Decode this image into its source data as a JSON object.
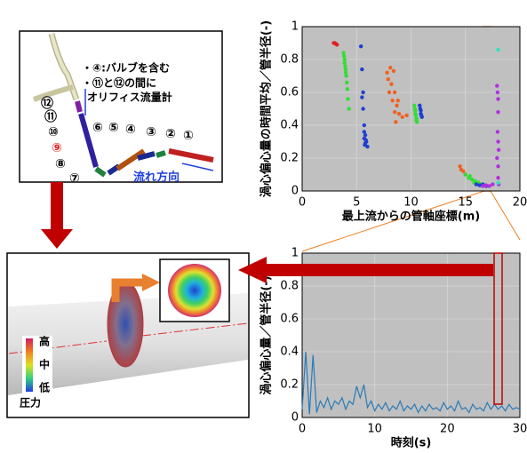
{
  "chart_data": [
    {
      "type": "scatter",
      "ylabel": "渦心偏心量の時間平均／管半径(-)",
      "xlabel": "最上流からの管軸座標(m)",
      "xlim": [
        0,
        20
      ],
      "xticks": [
        0,
        5,
        10,
        15,
        20
      ],
      "ylim": [
        0,
        1
      ],
      "yticks": [
        0,
        0.2,
        0.4,
        0.6,
        0.8,
        1
      ],
      "grid": true,
      "series": [
        {
          "color": "#e02020",
          "x": [
            2.9,
            3.0,
            3.1,
            3.2
          ],
          "values": [
            0.9,
            0.9,
            0.895,
            0.89
          ]
        },
        {
          "color": "#33dd33",
          "x": [
            3.8,
            3.85,
            3.9,
            3.9,
            3.95,
            4.0,
            4.0,
            4.05,
            4.1,
            4.15,
            4.2,
            4.3
          ],
          "values": [
            0.84,
            0.82,
            0.8,
            0.78,
            0.76,
            0.74,
            0.72,
            0.7,
            0.66,
            0.62,
            0.56,
            0.5
          ]
        },
        {
          "color": "#1f3fd0",
          "x": [
            5.4,
            5.5,
            5.6,
            5.6,
            5.5,
            5.7,
            5.7,
            5.8,
            5.7,
            5.9,
            5.8,
            6.0,
            5.75,
            5.85
          ],
          "values": [
            0.88,
            0.74,
            0.6,
            0.5,
            0.57,
            0.4,
            0.36,
            0.34,
            0.32,
            0.3,
            0.29,
            0.27,
            0.28,
            0.31
          ]
        },
        {
          "color": "#f06020",
          "x": [
            7.8,
            8.1,
            8.4,
            7.9,
            8.2,
            8.5,
            8.0,
            8.3,
            8.7,
            8.5,
            8.9,
            9.2,
            9.6,
            8.8,
            8.6
          ],
          "values": [
            0.72,
            0.75,
            0.73,
            0.68,
            0.65,
            0.6,
            0.6,
            0.55,
            0.52,
            0.48,
            0.47,
            0.45,
            0.46,
            0.55,
            0.42
          ]
        },
        {
          "color": "#33dd33",
          "x": [
            10.3,
            10.35,
            10.4,
            10.4,
            10.45,
            10.5,
            10.5,
            10.55
          ],
          "values": [
            0.52,
            0.5,
            0.49,
            0.47,
            0.46,
            0.44,
            0.43,
            0.42
          ]
        },
        {
          "color": "#1f3fd0",
          "x": [
            10.8,
            10.85,
            10.9,
            10.9,
            10.95,
            11.0
          ],
          "values": [
            0.52,
            0.5,
            0.49,
            0.47,
            0.46,
            0.45
          ]
        },
        {
          "color": "#f06020",
          "x": [
            14.5,
            14.6,
            14.8,
            15.0
          ],
          "values": [
            0.15,
            0.13,
            0.12,
            0.1
          ]
        },
        {
          "color": "#33dd33",
          "x": [
            15.0,
            15.3,
            15.6,
            15.9,
            16.2,
            16.5,
            15.4,
            15.8
          ],
          "values": [
            0.1,
            0.08,
            0.07,
            0.06,
            0.05,
            0.04,
            0.09,
            0.05
          ]
        },
        {
          "color": "#1f3fd0",
          "x": [
            16.0,
            16.3,
            16.6,
            16.9
          ],
          "values": [
            0.04,
            0.035,
            0.04,
            0.03
          ]
        },
        {
          "color": "#b030e0",
          "x": [
            16.6,
            16.9,
            17.2,
            17.5,
            17.9,
            17.95,
            18.0,
            18.0,
            17.95,
            18.0,
            18.05,
            17.9,
            18.0,
            18.0,
            18.05
          ],
          "values": [
            0.03,
            0.035,
            0.03,
            0.04,
            0.64,
            0.6,
            0.56,
            0.48,
            0.36,
            0.3,
            0.25,
            0.2,
            0.15,
            0.08,
            0.04
          ]
        },
        {
          "color": "#30e0c0",
          "x": [
            18.0,
            18.0
          ],
          "values": [
            0.86,
            0.05
          ]
        }
      ]
    },
    {
      "type": "line",
      "ylabel": "渦心偏心量／管半径(-)",
      "xlabel": "時刻(s)",
      "xlim": [
        0,
        30
      ],
      "xticks": [
        0,
        10,
        20,
        30
      ],
      "ylim": [
        0,
        1
      ],
      "yticks": [
        0,
        0.2,
        0.4,
        0.6,
        0.8,
        1
      ],
      "grid": true,
      "color": "#2a7ab8",
      "x": [
        0,
        0.5,
        1,
        1.5,
        2,
        2.5,
        3,
        3.5,
        4,
        4.5,
        5,
        5.5,
        6,
        6.5,
        7,
        7.5,
        8,
        8.5,
        9,
        9.5,
        10,
        10.5,
        11,
        11.5,
        12,
        12.5,
        13,
        13.5,
        14,
        14.5,
        15,
        15.5,
        16,
        16.5,
        17,
        17.5,
        18,
        18.5,
        19,
        19.5,
        20,
        20.5,
        21,
        21.5,
        22,
        22.5,
        23,
        23.5,
        24,
        24.5,
        25,
        25.5,
        26,
        26.5,
        27,
        27.5,
        28,
        28.5,
        29,
        29.5,
        30
      ],
      "values": [
        0.05,
        0.4,
        0.02,
        0.38,
        0.03,
        0.1,
        0.06,
        0.12,
        0.05,
        0.1,
        0.08,
        0.12,
        0.05,
        0.1,
        0.08,
        0.19,
        0.12,
        0.2,
        0.06,
        0.1,
        0.04,
        0.08,
        0.05,
        0.09,
        0.04,
        0.07,
        0.05,
        0.1,
        0.04,
        0.07,
        0.05,
        0.08,
        0.03,
        0.07,
        0.04,
        0.08,
        0.05,
        0.06,
        0.04,
        0.09,
        0.05,
        0.07,
        0.04,
        0.1,
        0.05,
        0.06,
        0.03,
        0.08,
        0.05,
        0.06,
        0.04,
        0.09,
        0.05,
        0.08,
        0.05,
        0.07,
        0.04,
        0.08,
        0.05,
        0.06,
        0.05
      ]
    }
  ],
  "pipe_diagram": {
    "notes": [
      "・④:バルブを含む",
      "・⑪と⑫の間に",
      "オリフィス流量計"
    ],
    "part_labels": [
      "⑫",
      "⑪",
      "⑩",
      "⑨",
      "⑧",
      "⑦",
      "⑥",
      "⑤",
      "④",
      "③",
      "②",
      "①"
    ],
    "flow_label": "流れ方向"
  },
  "cfd_view": {
    "legend_high": "高",
    "legend_mid": "中",
    "legend_low": "低",
    "legend_title": "圧力"
  }
}
